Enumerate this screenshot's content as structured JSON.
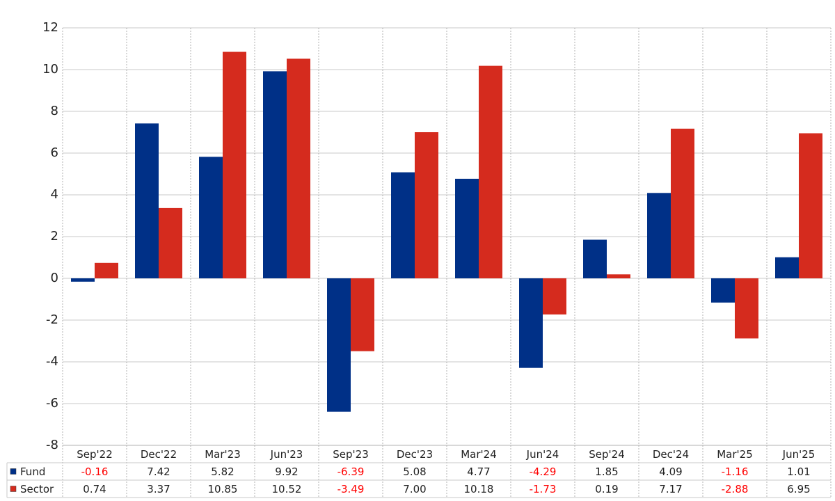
{
  "chart_data": {
    "type": "bar",
    "categories": [
      "Sep'22",
      "Dec'22",
      "Mar'23",
      "Jun'23",
      "Sep'23",
      "Dec'23",
      "Mar'24",
      "Jun'24",
      "Sep'24",
      "Dec'24",
      "Mar'25",
      "Jun'25"
    ],
    "series": [
      {
        "name": "Fund",
        "color": "#003087",
        "values": [
          -0.16,
          7.42,
          5.82,
          9.92,
          -6.39,
          5.08,
          4.77,
          -4.29,
          1.85,
          4.09,
          -1.16,
          1.01
        ],
        "value_labels": [
          "-0.16",
          "7.42",
          "5.82",
          "9.92",
          "-6.39",
          "5.08",
          "4.77",
          "-4.29",
          "1.85",
          "4.09",
          "-1.16",
          "1.01"
        ]
      },
      {
        "name": "Sector",
        "color": "#d52b1e",
        "values": [
          0.74,
          3.37,
          10.85,
          10.52,
          -3.49,
          7.0,
          10.18,
          -1.73,
          0.19,
          7.17,
          -2.88,
          6.95
        ],
        "value_labels": [
          "0.74",
          "3.37",
          "10.85",
          "10.52",
          "-3.49",
          "7.00",
          "10.18",
          "-1.73",
          "0.19",
          "7.17",
          "-2.88",
          "6.95"
        ]
      }
    ],
    "ylim": [
      -8,
      12
    ],
    "yticks": [
      -8,
      -6,
      -4,
      -2,
      0,
      2,
      4,
      6,
      8,
      10,
      12
    ],
    "grid": true,
    "negative_label_color": "#ff0000"
  }
}
